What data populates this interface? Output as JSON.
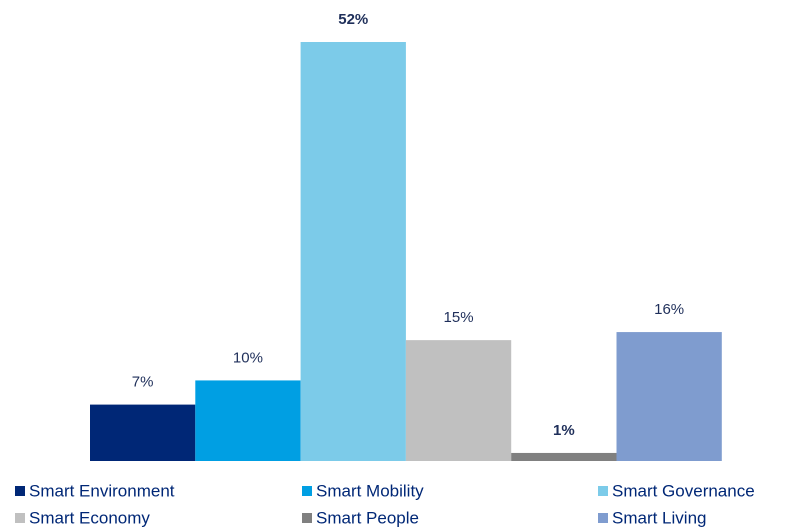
{
  "chart_data": {
    "type": "bar",
    "series": [
      {
        "name": "Smart Environment",
        "color": "#002776",
        "values": [
          7
        ],
        "value_labels": [
          "7%"
        ]
      },
      {
        "name": "Smart Mobility",
        "color": "#009fe3",
        "values": [
          10
        ],
        "value_labels": [
          "10%"
        ]
      },
      {
        "name": "Smart Governance",
        "color": "#7ccbe9",
        "values": [
          52
        ],
        "value_labels": [
          "52%"
        ]
      },
      {
        "name": "Smart Economy",
        "color": "#c0c0c0",
        "values": [
          15
        ],
        "value_labels": [
          "15%"
        ]
      },
      {
        "name": "Smart People",
        "color": "#808080",
        "values": [
          1
        ],
        "value_labels": [
          "1%"
        ]
      },
      {
        "name": "Smart Living",
        "color": "#7f9ccf",
        "values": [
          16
        ],
        "value_labels": [
          "16%"
        ]
      }
    ]
  }
}
